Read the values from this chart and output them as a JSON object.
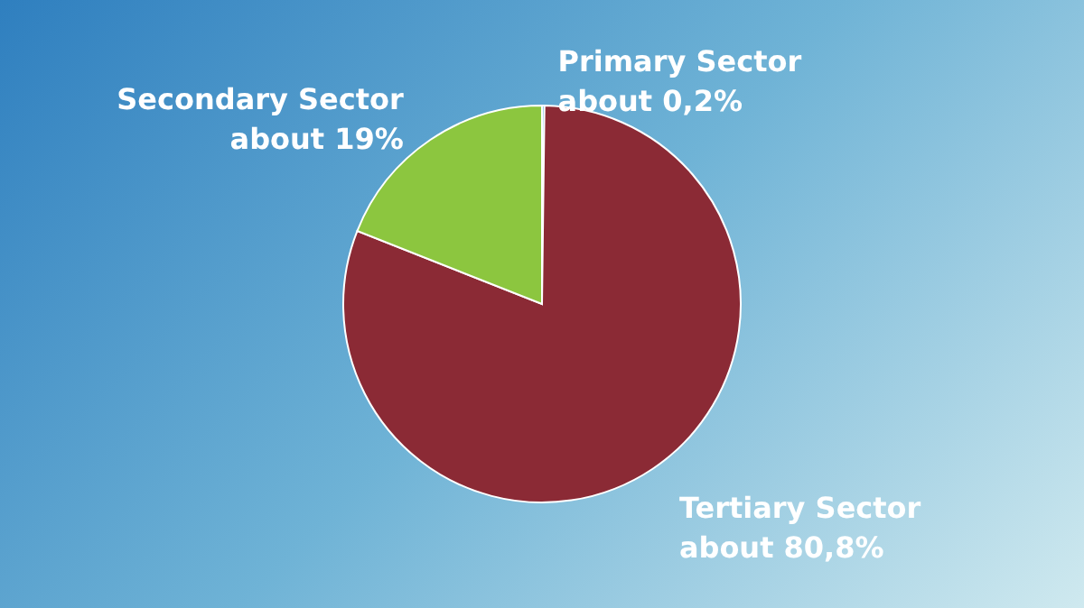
{
  "chart_data": {
    "type": "pie",
    "categories": [
      "Primary Sector",
      "Tertiary Sector",
      "Secondary Sector"
    ],
    "values": [
      0.2,
      80.8,
      19
    ],
    "colors": [
      "#4a9fd5",
      "#8b2a35",
      "#8cc63f"
    ],
    "value_labels": [
      "about 0,2%",
      "about 80,8%",
      "about  19%"
    ]
  }
}
